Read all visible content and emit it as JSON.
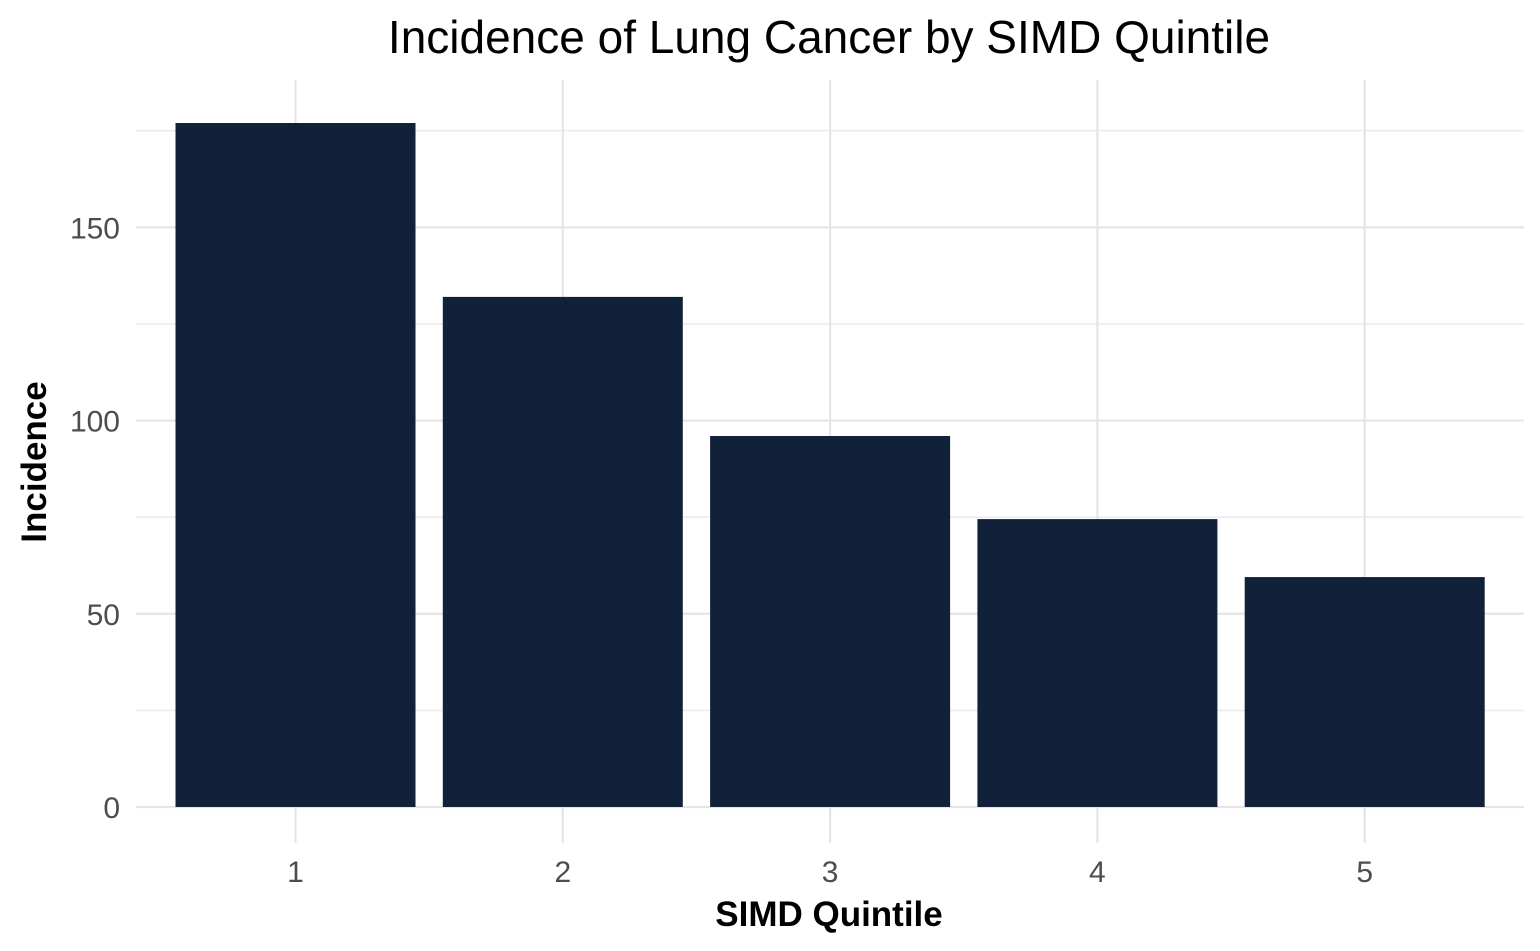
{
  "chart_data": {
    "type": "bar",
    "title": "Incidence of Lung Cancer by SIMD Quintile",
    "xlabel": "SIMD Quintile",
    "ylabel": "Incidence",
    "categories": [
      "1",
      "2",
      "3",
      "4",
      "5"
    ],
    "values": [
      177,
      132,
      96,
      74.5,
      59.5
    ],
    "ylim": [
      0,
      177
    ],
    "yticks": [
      0,
      50,
      100,
      150
    ],
    "grid": true,
    "legend": "none",
    "bar_color": "#12213a"
  }
}
